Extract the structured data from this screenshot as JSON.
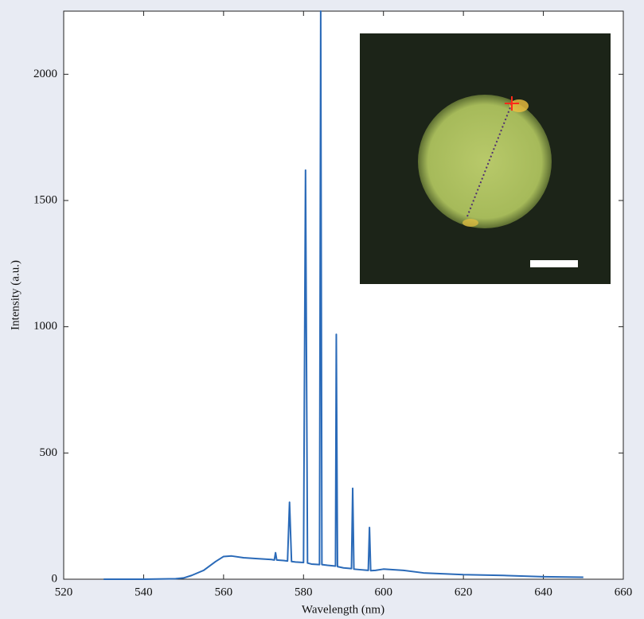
{
  "chart_data": {
    "type": "line",
    "x_label": "Wavelength (nm)",
    "y_label": "Intensity (a.u.)",
    "x": [
      530,
      540,
      548,
      550,
      552,
      555,
      558,
      560,
      562,
      565,
      568,
      570,
      572,
      572.7,
      573,
      573.3,
      575,
      576,
      576.5,
      577,
      578,
      580,
      580.5,
      581,
      582,
      584,
      584.3,
      584.6,
      586,
      588,
      588.2,
      588.5,
      590,
      592,
      592.3,
      592.6,
      594,
      596.2,
      596.5,
      596.8,
      598,
      600,
      605,
      610,
      620,
      630,
      640,
      650
    ],
    "series": [
      {
        "color": "#2a6ab8",
        "values": [
          0,
          0,
          2,
          5,
          15,
          35,
          70,
          90,
          92,
          85,
          82,
          80,
          78,
          76,
          105,
          76,
          74,
          72,
          305,
          70,
          68,
          66,
          1620,
          64,
          60,
          58,
          2250,
          58,
          55,
          52,
          970,
          50,
          45,
          42,
          360,
          40,
          38,
          35,
          205,
          34,
          35,
          40,
          35,
          25,
          18,
          15,
          10,
          8
        ]
      }
    ],
    "xlim": [
      520,
      660
    ],
    "ylim": [
      0,
      2250
    ],
    "xticks": [
      520,
      540,
      560,
      580,
      600,
      620,
      640,
      660
    ],
    "yticks": [
      0,
      500,
      1000,
      1500,
      2000
    ]
  }
}
